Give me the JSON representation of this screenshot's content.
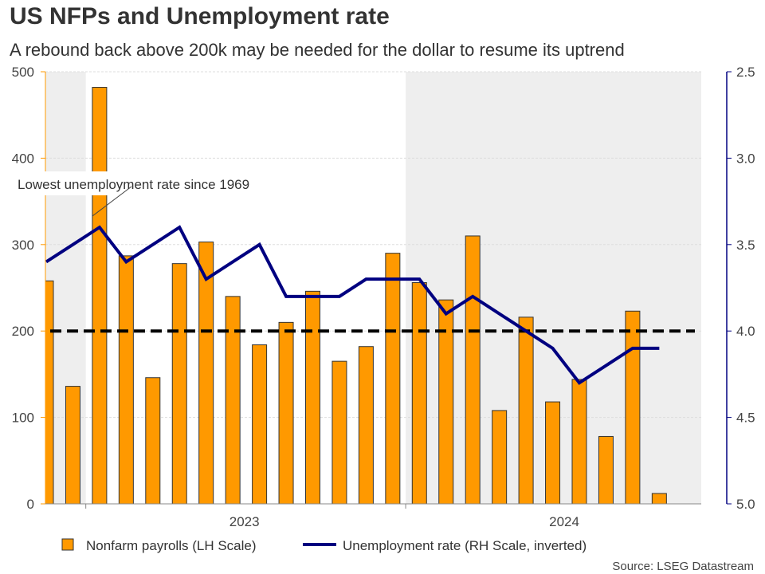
{
  "title": "US NFPs and Unemployment rate",
  "subtitle": "A rebound back above 200k may be needed for the dollar to resume its uptrend",
  "source": "Source: LSEG Datastream",
  "annotation": "Lowest unemployment rate since 1969",
  "chart_data": {
    "type": "bar+line",
    "categories": [
      "2022-11",
      "2022-12",
      "2023-01",
      "2023-02",
      "2023-03",
      "2023-04",
      "2023-05",
      "2023-06",
      "2023-07",
      "2023-08",
      "2023-09",
      "2023-10",
      "2023-11",
      "2023-12",
      "2024-01",
      "2024-02",
      "2024-03",
      "2024-04",
      "2024-05",
      "2024-06",
      "2024-07",
      "2024-08",
      "2024-09",
      "2024-10"
    ],
    "x_tick_labels": [
      "2023",
      "2024"
    ],
    "series": [
      {
        "name": "Nonfarm payrolls (LH Scale)",
        "type": "bar",
        "axis": "left",
        "color": "#FF9900",
        "values": [
          258,
          136,
          482,
          287,
          146,
          278,
          303,
          240,
          184,
          210,
          246,
          165,
          182,
          290,
          256,
          236,
          310,
          108,
          216,
          118,
          144,
          78,
          223,
          12
        ]
      },
      {
        "name": "Unemployment rate (RH Scale, inverted)",
        "type": "line",
        "axis": "right",
        "color": "#000080",
        "values": [
          3.6,
          3.5,
          3.4,
          3.6,
          3.5,
          3.4,
          3.7,
          3.6,
          3.5,
          3.8,
          3.8,
          3.8,
          3.7,
          3.7,
          3.7,
          3.9,
          3.8,
          3.9,
          4.0,
          4.1,
          4.3,
          4.2,
          4.1,
          4.1
        ]
      }
    ],
    "reference_line": {
      "value": 200,
      "axis": "left",
      "style": "dashed",
      "color": "#000000"
    },
    "left_axis": {
      "ylim": [
        0,
        500
      ],
      "ticks": [
        "0",
        "100",
        "200",
        "300",
        "400",
        "500"
      ]
    },
    "right_axis": {
      "ylim": [
        2.5,
        5.0
      ],
      "inverted": true,
      "ticks": [
        "2.5",
        "3.0",
        "3.5",
        "4.0",
        "4.5",
        "5.0"
      ]
    },
    "shaded_periods": [
      [
        "2022-11",
        "2022-12"
      ],
      [
        "2024-01",
        "2024-12"
      ]
    ],
    "shade_color": "#EEEEEE",
    "grid": true,
    "legend_position": "bottom"
  }
}
